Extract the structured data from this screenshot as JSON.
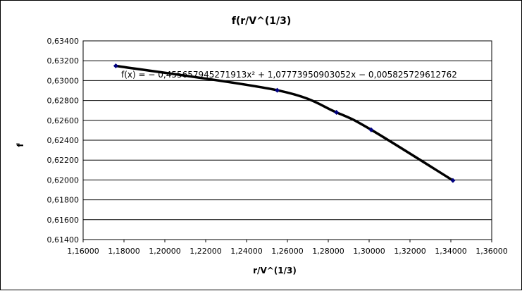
{
  "chart_data": {
    "type": "scatter",
    "title": "f(r/V^(1/3)",
    "xlabel": "r/V^(1/3)",
    "ylabel": "f",
    "xlim": [
      1.16,
      1.36
    ],
    "ylim": [
      0.614,
      0.634
    ],
    "x_ticks": [
      "1,16000",
      "1,18000",
      "1,20000",
      "1,22000",
      "1,24000",
      "1,26000",
      "1,28000",
      "1,30000",
      "1,32000",
      "1,34000",
      "1,36000"
    ],
    "y_ticks": [
      "0,61400",
      "0,61600",
      "0,61800",
      "0,62000",
      "0,62200",
      "0,62400",
      "0,62600",
      "0,62800",
      "0,63000",
      "0,63200",
      "0,63400"
    ],
    "grid": "horizontal",
    "series": [
      {
        "x": [
          1.176,
          1.255,
          1.284,
          1.301,
          1.341
        ],
        "y": [
          0.63148,
          0.62903,
          0.6268,
          0.62505,
          0.61995
        ],
        "marker_color": "#000080"
      }
    ],
    "trendline": {
      "type": "polynomial",
      "order": 2,
      "equation": "f(x) = − 0,455657945271913x² + 1,07773950903052x − 0,005825729612762",
      "color": "#000000"
    }
  }
}
